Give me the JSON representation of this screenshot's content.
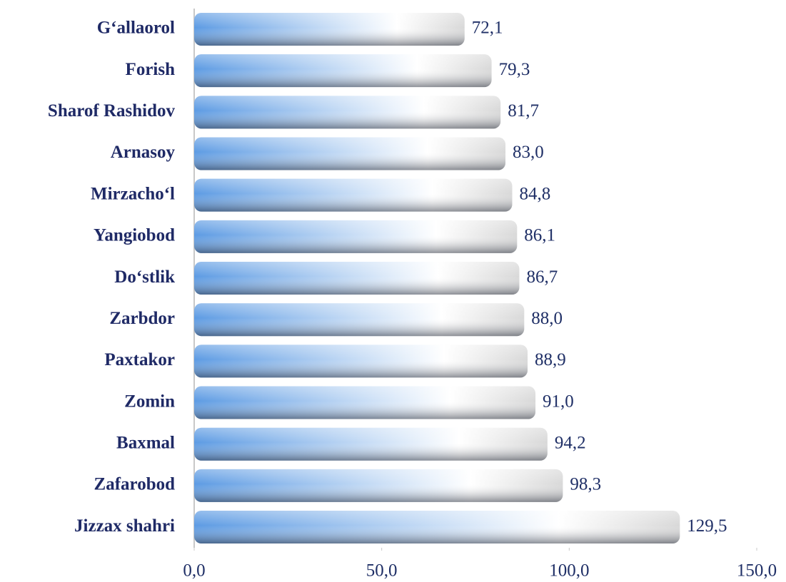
{
  "chart_data": {
    "type": "bar",
    "orientation": "horizontal",
    "categories": [
      "G‘allaorol",
      "Forish",
      "Sharof Rashidov",
      "Arnasoy",
      "Mirzacho‘l",
      "Yangiobod",
      "Do‘stlik",
      "Zarbdor",
      "Paxtakor",
      "Zomin",
      "Baxmal",
      "Zafarobod",
      "Jizzax shahri"
    ],
    "values": [
      72.1,
      79.3,
      81.7,
      83.0,
      84.8,
      86.1,
      86.7,
      88.0,
      88.9,
      91.0,
      94.2,
      98.3,
      129.5
    ],
    "value_labels": [
      "72,1",
      "79,3",
      "81,7",
      "83,0",
      "84,8",
      "86,1",
      "86,7",
      "88,0",
      "88,9",
      "91,0",
      "94,2",
      "98,3",
      "129,5"
    ],
    "color": "#5d9be3",
    "xlim": [
      0,
      150
    ],
    "xticks": [
      {
        "value": 0,
        "label": "0,0"
      },
      {
        "value": 50,
        "label": "50,0"
      },
      {
        "value": 100,
        "label": "100,0"
      },
      {
        "value": 150,
        "label": "150,0"
      }
    ]
  }
}
